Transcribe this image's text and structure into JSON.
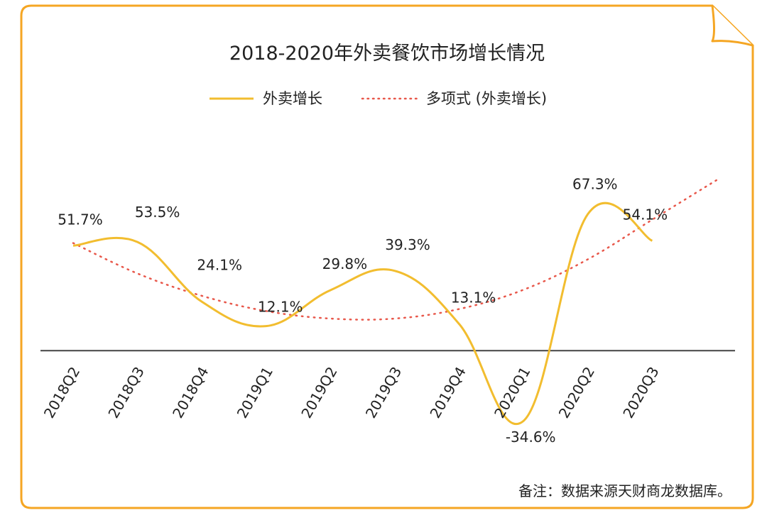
{
  "colors": {
    "frame": "#f5a623",
    "series": "#f2bd2f",
    "trend": "#e8574a",
    "axis": "#444444",
    "text": "#222222"
  },
  "chart_data": {
    "type": "line",
    "title": "2018-2020年外卖餐饮市场增长情况",
    "categories": [
      "2018Q2",
      "2018Q3",
      "2018Q4",
      "2019Q1",
      "2019Q2",
      "2019Q3",
      "2019Q4",
      "2020Q1",
      "2020Q2",
      "2020Q3"
    ],
    "series": [
      {
        "name": "外卖增长",
        "values": [
          51.7,
          53.5,
          24.1,
          12.1,
          29.8,
          39.3,
          13.1,
          -34.6,
          67.3,
          54.1
        ],
        "labels": [
          "51.7%",
          "53.5%",
          "24.1%",
          "12.1%",
          "29.8%",
          "39.3%",
          "13.1%",
          "-34.6%",
          "67.3%",
          "54.1%"
        ],
        "smooth": true
      },
      {
        "name": "多项式 (外卖增长)",
        "type": "polynomial-trendline",
        "values": [
          53,
          38,
          27,
          19.5,
          15.8,
          15.8,
          20.5,
          30,
          45,
          64.5
        ],
        "style": "dotted"
      }
    ],
    "ylim": [
      -45,
      85
    ],
    "grid": false,
    "legend": "top-center",
    "zero_line": true
  },
  "note": "备注：数据来源天财商龙数据库。"
}
